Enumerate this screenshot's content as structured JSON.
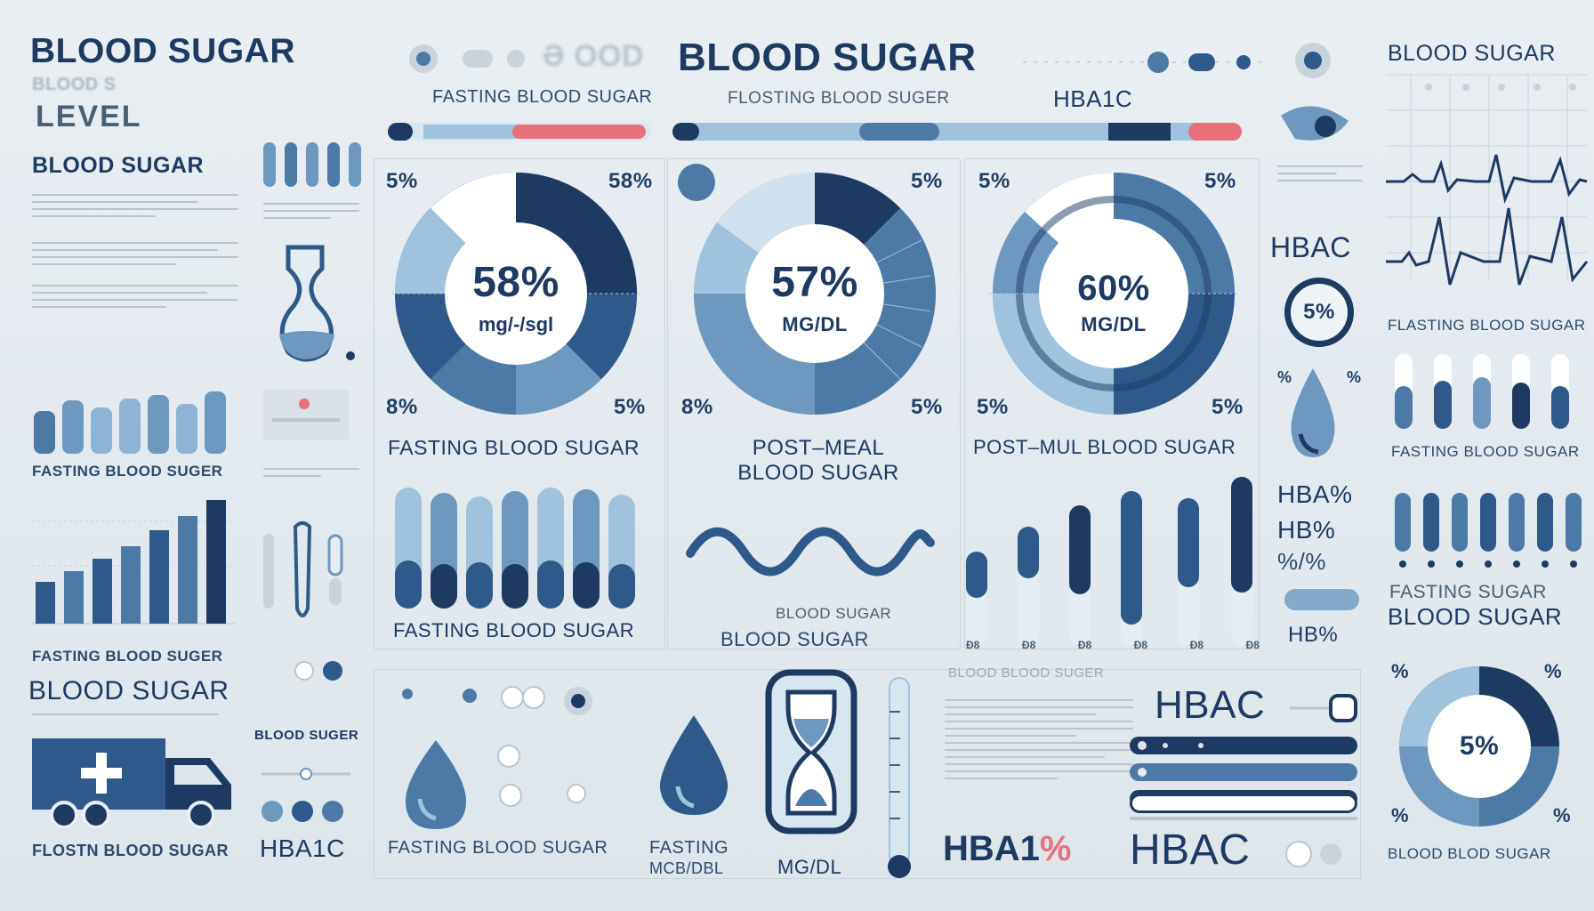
{
  "left_column": {
    "title": "BLOOD SUGAR",
    "subtitle_ghost": "BLOOD S",
    "subtitle": "LEVEL",
    "heading": "BLOOD SUGAR",
    "bars_label": "FASTING BLOOD SUGER",
    "growth_label": "FASTING BLOOD SUGER",
    "footer_title": "BLOOD SUGAR",
    "truck_caption": "FLOSTN BLOOD SUGAR",
    "mini_label": "BLOOD SUGER",
    "hba1c": "HBA1C"
  },
  "center_header": {
    "ghost_left": "ə OOD",
    "title": "BLOOD SUGAR",
    "tag_fasting": "FASTING BLOOD SUGAR",
    "tag_flosting": "FLOSTING BLOOD SUGER",
    "tag_hba1c": "HBA1C"
  },
  "gauges": [
    {
      "value": "58%",
      "unit": "mg/-/sgl",
      "tl": "5%",
      "tr": "58%",
      "bl": "8%",
      "br": "5%",
      "label": "FASTING BLOOD SUGAR"
    },
    {
      "value": "57%",
      "unit": "mg/DL",
      "tl": "",
      "tr": "5%",
      "bl": "8%",
      "br": "5%",
      "label_line1": "POST–MEAL",
      "label_line2": "BLOOD SUGAR"
    },
    {
      "value": "60%",
      "unit": "mg/DL",
      "tl": "5%",
      "tr": "5%",
      "bl": "5%",
      "br": "5%",
      "label": "POST–MUL BLOOD SUGAR"
    }
  ],
  "middle": {
    "vials_label": "FASTING BLOOD SUGAR",
    "wave_label1": "BLOOD SUGAR",
    "wave_label2": "BLOOD SUGAR",
    "tall_bars_ticks": [
      "Đ8",
      "Đ8",
      "Đ8",
      "Đ8",
      "Đ8",
      "Đ8"
    ]
  },
  "right_inner": {
    "hbac1": "HBAC",
    "badge": "5%",
    "hba_pct": "HBA%",
    "hb_pct": "HB%",
    "pct_pct": "%/%",
    "hb_small": "HB%"
  },
  "bottom": {
    "drop_label": "FASTING BLOOD SUGAR",
    "fasting": "FASTING",
    "mcb": "MCB/DBL",
    "mgdl": "MG/DL",
    "table_title": "BLOOD BLOOD SUGER",
    "hba1_text": "HBA1",
    "hba1_pct": "%",
    "hbac_top": "HBAC",
    "hbac_bottom": "HBAC"
  },
  "right_column": {
    "title": "BLOOD SUGAR",
    "fasting1": "FLASTING BLOOD SUGAR",
    "fasting2": "FASTING BLOOD SUGAR",
    "fasting3": "FASTING SUGAR",
    "blood_sugar": "BLOOD SUGAR",
    "donut_value": "5%",
    "donut_tl": "%",
    "donut_tr": "%",
    "donut_bl": "%",
    "donut_br": "%",
    "footer": "BLOOD BLOD SUGAR",
    "drop_l": "%",
    "drop_r": "%"
  },
  "colors": {
    "navy": "#1d3a63",
    "mid": "#4c7aa6",
    "light": "#9fc3dd",
    "pale": "#d8e6ef",
    "red": "#e8707a"
  }
}
